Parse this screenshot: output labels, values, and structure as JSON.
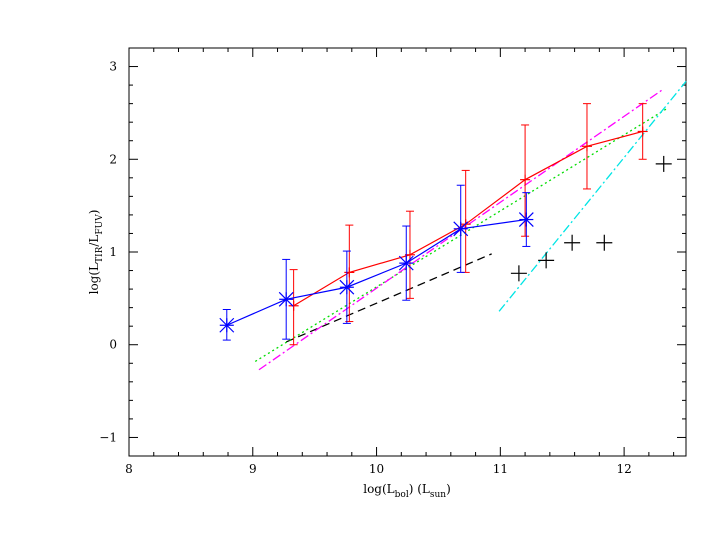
{
  "chart_data": {
    "type": "scatter",
    "title": "",
    "xlabel": {
      "base": "log(L",
      "sub": "bol",
      "mid": ")  (L",
      "sub2": "sun",
      "end": ")"
    },
    "ylabel": {
      "base": "log(L",
      "sub": "TIR",
      "mid": "/L",
      "sub2": "FUV",
      "end": ")"
    },
    "xlim": [
      8,
      12.5
    ],
    "ylim": [
      -1.2,
      3.2
    ],
    "xticks": [
      8,
      9,
      10,
      11,
      12
    ],
    "yticks": [
      -1,
      0,
      1,
      2,
      3
    ],
    "grid": false,
    "series": [
      {
        "style": "red-line-errorbars",
        "color": "#ff0000",
        "marker": "plus",
        "points": [
          {
            "x": 9.33,
            "y": 0.42,
            "yerr_low": 0.0,
            "yerr_high": 0.81
          },
          {
            "x": 9.78,
            "y": 0.78,
            "yerr_low": 0.25,
            "yerr_high": 1.29
          },
          {
            "x": 10.27,
            "y": 0.97,
            "yerr_low": 0.5,
            "yerr_high": 1.44
          },
          {
            "x": 10.72,
            "y": 1.3,
            "yerr_low": 0.78,
            "yerr_high": 1.88
          },
          {
            "x": 11.2,
            "y": 1.78,
            "yerr_low": 1.17,
            "yerr_high": 2.37
          },
          {
            "x": 11.7,
            "y": 2.14,
            "yerr_low": 1.68,
            "yerr_high": 2.6
          },
          {
            "x": 12.15,
            "y": 2.3,
            "yerr_low": 2.0,
            "yerr_high": 2.6
          }
        ]
      },
      {
        "style": "blue-line-errorbars",
        "color": "#0000ff",
        "marker": "asterisk",
        "points": [
          {
            "x": 8.79,
            "y": 0.21,
            "yerr_low": 0.05,
            "yerr_high": 0.38
          },
          {
            "x": 9.27,
            "y": 0.49,
            "yerr_low": 0.06,
            "yerr_high": 0.92
          },
          {
            "x": 9.76,
            "y": 0.62,
            "yerr_low": 0.23,
            "yerr_high": 1.01
          },
          {
            "x": 10.24,
            "y": 0.88,
            "yerr_low": 0.48,
            "yerr_high": 1.28
          },
          {
            "x": 10.68,
            "y": 1.25,
            "yerr_low": 0.78,
            "yerr_high": 1.72
          },
          {
            "x": 11.21,
            "y": 1.35,
            "yerr_low": 1.06,
            "yerr_high": 1.64
          }
        ]
      },
      {
        "style": "black-crosses",
        "color": "#000000",
        "marker": "plus",
        "points": [
          {
            "x": 11.15,
            "y": 0.77
          },
          {
            "x": 11.37,
            "y": 0.91
          },
          {
            "x": 11.58,
            "y": 1.1
          },
          {
            "x": 11.84,
            "y": 1.1
          },
          {
            "x": 12.32,
            "y": 1.95
          }
        ]
      }
    ],
    "lines": [
      {
        "style": "dashed",
        "color": "#000000",
        "dash": "8,5",
        "x": [
          9.27,
          10.93
        ],
        "y": [
          0.03,
          0.98
        ]
      },
      {
        "style": "dotted",
        "color": "#00dd00",
        "dash": "2,3",
        "x": [
          9.02,
          12.35
        ],
        "y": [
          -0.18,
          2.55
        ]
      },
      {
        "style": "dash-dot",
        "color": "#ff00ff",
        "dash": "9,3,2,3",
        "x": [
          9.05,
          12.31
        ],
        "y": [
          -0.27,
          2.75
        ]
      },
      {
        "style": "dash-dot",
        "color": "#00e5e5",
        "dash": "9,3,2,3",
        "x": [
          10.99,
          12.5
        ],
        "y": [
          0.36,
          2.84
        ]
      }
    ]
  }
}
